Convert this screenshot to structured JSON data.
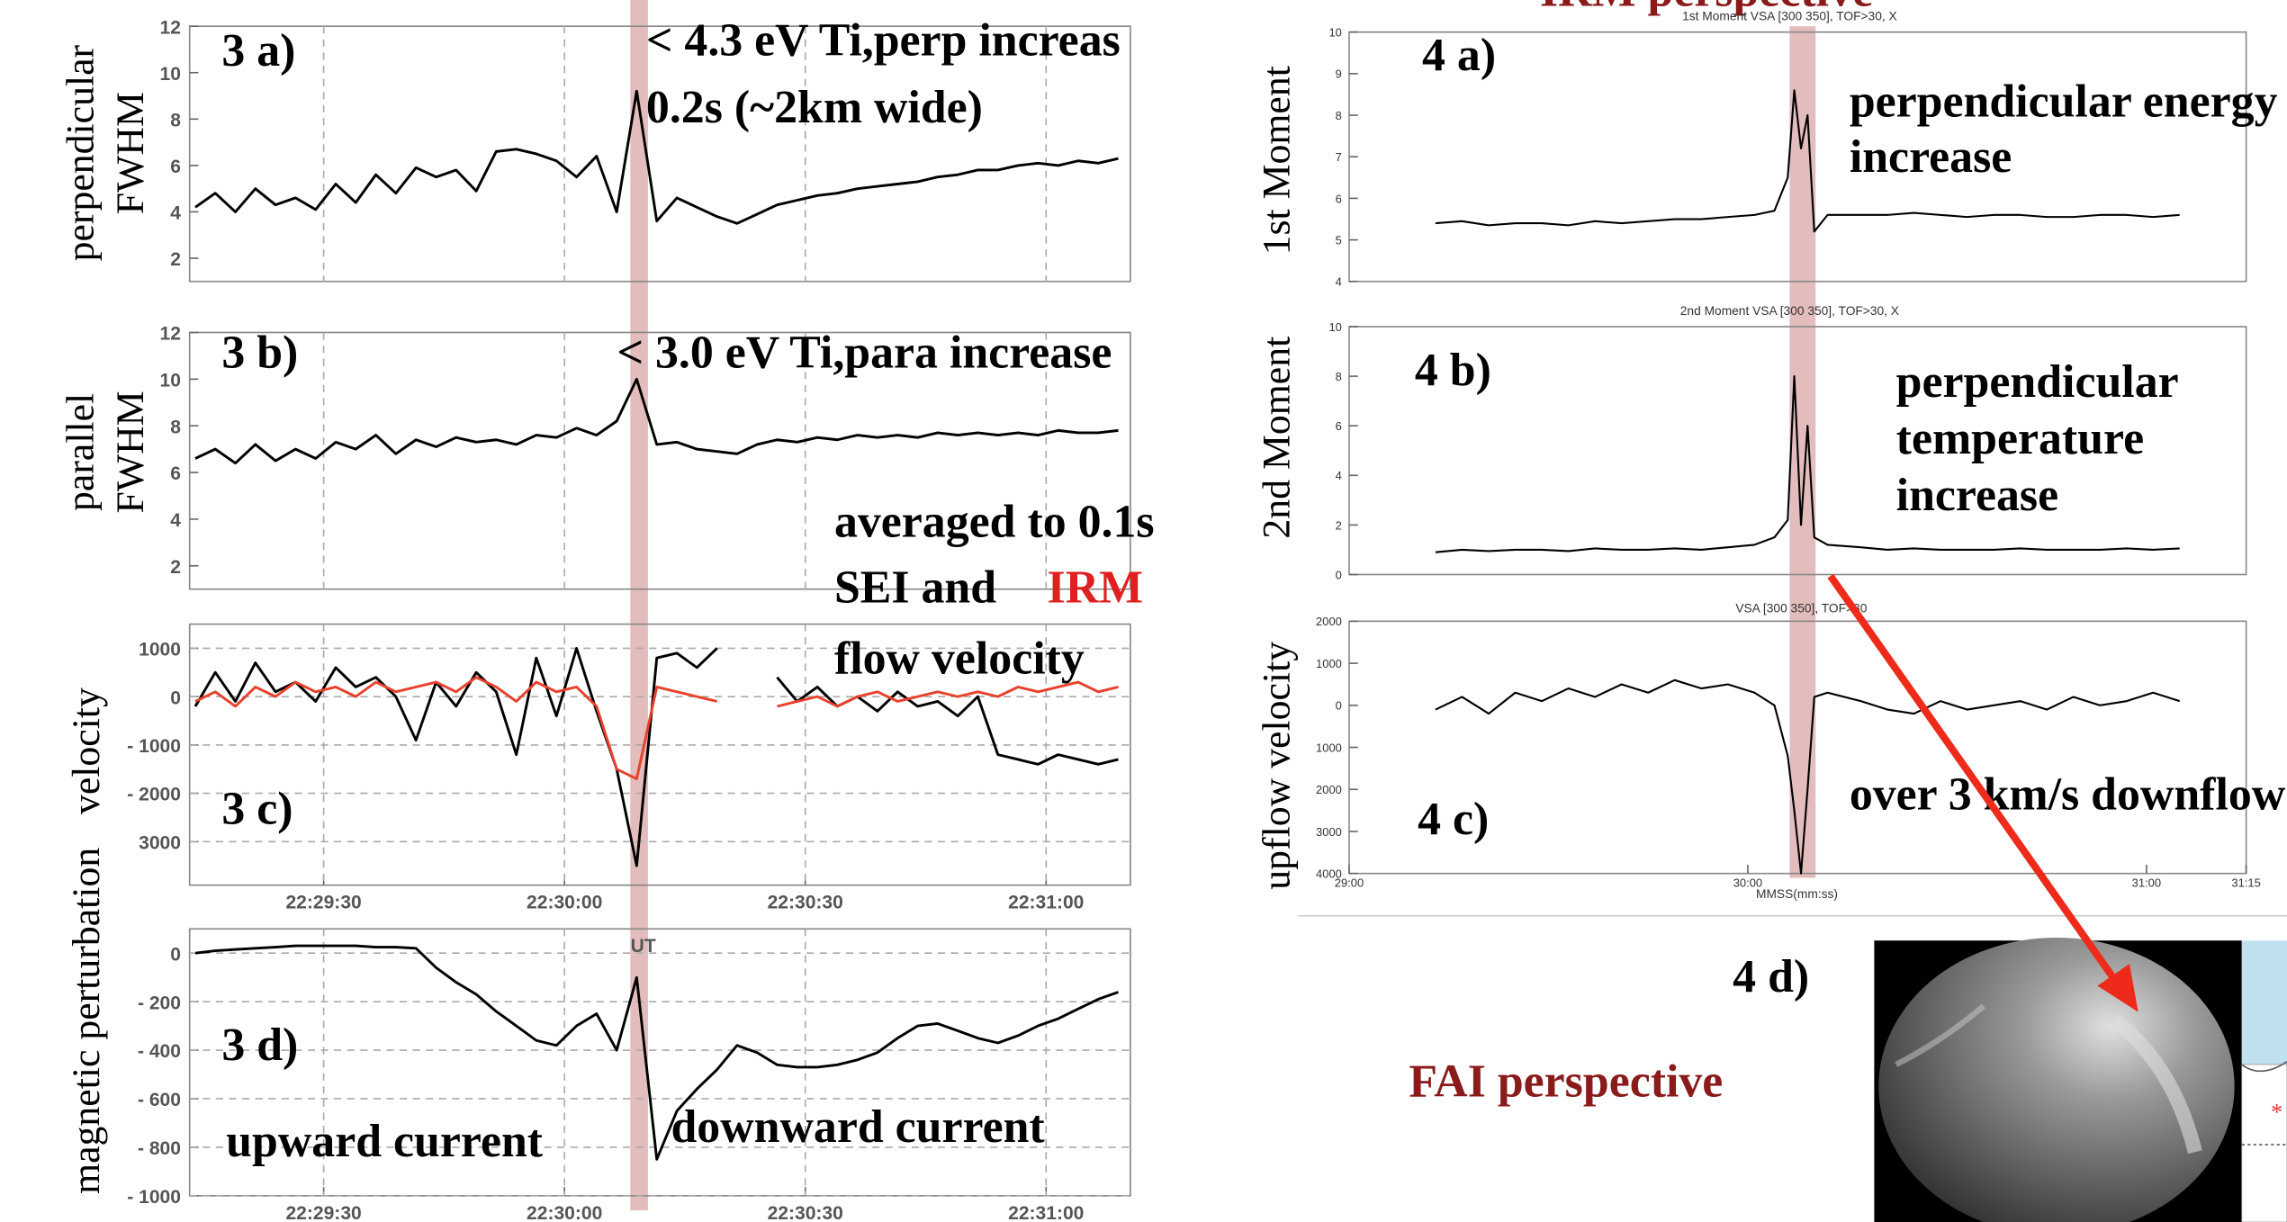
{
  "headings": {
    "irm": "IRM perspective",
    "fai": "FAI perspective",
    "panel_4d": "4 d)"
  },
  "note": [
    "averaged to 0.1s",
    "SEI and",
    "IRM",
    "flow velocity"
  ],
  "left_band": [
    68.2,
    70.4
  ],
  "right_band": [
    66.3,
    70.2
  ],
  "chart_data": [
    {
      "type": "line",
      "panel_label": "3 a)",
      "ylabel": [
        "perpendicular",
        "FWHM"
      ],
      "annotations": [
        "< 4.3 eV Ti,perp increas",
        "0.2s (~2km wide)"
      ],
      "x": [
        14,
        16.5,
        19,
        21.5,
        24,
        26.5,
        29,
        31.5,
        34,
        36.5,
        39,
        41.5,
        44,
        46.5,
        49,
        51.5,
        54,
        56.5,
        59,
        61.5,
        64,
        66.5,
        69,
        71.5,
        74,
        76.5,
        79,
        81.5,
        84,
        86.5,
        89,
        91.5,
        94,
        96.5,
        99,
        101.5,
        104,
        106.5,
        109,
        111.5,
        114,
        116.5,
        119,
        121.5,
        124,
        126.5,
        129
      ],
      "series": [
        {
          "color": "#000000",
          "values": [
            4.2,
            4.8,
            4.0,
            5.0,
            4.3,
            4.6,
            4.1,
            5.2,
            4.4,
            5.6,
            4.8,
            5.9,
            5.5,
            5.8,
            4.9,
            6.6,
            6.7,
            6.5,
            6.2,
            5.5,
            6.4,
            4.0,
            9.2,
            3.6,
            4.6,
            4.2,
            3.8,
            3.5,
            3.9,
            4.3,
            4.5,
            4.7,
            4.8,
            5.0,
            5.1,
            5.2,
            5.3,
            5.5,
            5.6,
            5.8,
            5.8,
            6.0,
            6.1,
            6.0,
            6.2,
            6.1,
            6.3
          ]
        }
      ],
      "xlim": [
        13.3,
        130.5
      ],
      "ylim": [
        1,
        12
      ],
      "yticks": [
        2,
        4,
        6,
        8,
        10,
        12
      ],
      "xgrid": [
        30,
        60,
        90,
        120
      ]
    },
    {
      "type": "line",
      "panel_label": "3 b)",
      "ylabel": [
        "parallel",
        "FWHM"
      ],
      "annotations": [
        "< 3.0 eV Ti,para increase"
      ],
      "x": [
        14,
        16.5,
        19,
        21.5,
        24,
        26.5,
        29,
        31.5,
        34,
        36.5,
        39,
        41.5,
        44,
        46.5,
        49,
        51.5,
        54,
        56.5,
        59,
        61.5,
        64,
        66.5,
        69,
        71.5,
        74,
        76.5,
        79,
        81.5,
        84,
        86.5,
        89,
        91.5,
        94,
        96.5,
        99,
        101.5,
        104,
        106.5,
        109,
        111.5,
        114,
        116.5,
        119,
        121.5,
        124,
        126.5,
        129
      ],
      "series": [
        {
          "color": "#000000",
          "values": [
            6.6,
            7.0,
            6.4,
            7.2,
            6.5,
            7.0,
            6.6,
            7.3,
            7.0,
            7.6,
            6.8,
            7.4,
            7.1,
            7.5,
            7.3,
            7.4,
            7.2,
            7.6,
            7.5,
            7.9,
            7.6,
            8.2,
            10.0,
            7.2,
            7.3,
            7.0,
            6.9,
            6.8,
            7.2,
            7.4,
            7.3,
            7.5,
            7.4,
            7.6,
            7.5,
            7.6,
            7.5,
            7.7,
            7.6,
            7.7,
            7.6,
            7.7,
            7.6,
            7.8,
            7.7,
            7.7,
            7.8
          ]
        }
      ],
      "xlim": [
        13.3,
        130.5
      ],
      "ylim": [
        1,
        12
      ],
      "yticks": [
        2,
        4,
        6,
        8,
        10,
        12
      ],
      "xgrid": [
        30,
        60,
        90,
        120
      ]
    },
    {
      "type": "line",
      "panel_label": "3 c)",
      "ylabel": "velocity",
      "xlabel": "UT",
      "x": [
        14,
        16.5,
        19,
        21.5,
        24,
        26.5,
        29,
        31.5,
        34,
        36.5,
        39,
        41.5,
        44,
        46.5,
        49,
        51.5,
        54,
        56.5,
        59,
        61.5,
        64,
        66.5,
        69,
        71.5,
        74,
        76.5,
        79,
        81.5,
        84,
        86.5,
        89,
        91.5,
        94,
        96.5,
        99,
        101.5,
        104,
        106.5,
        109,
        111.5,
        114,
        116.5,
        119,
        121.5,
        124,
        126.5,
        129
      ],
      "series": [
        {
          "color": "#000000",
          "values": [
            -200,
            500,
            -100,
            700,
            100,
            300,
            -100,
            600,
            200,
            400,
            0,
            -900,
            300,
            -200,
            500,
            100,
            -1200,
            800,
            -400,
            1000,
            -300,
            -1500,
            -3500,
            800,
            900,
            600,
            1000,
            null,
            null,
            400,
            -100,
            200,
            -200,
            0,
            -300,
            100,
            -200,
            -100,
            -400,
            0,
            -1200,
            -1300,
            -1400,
            -1200,
            -1300,
            -1400,
            -1300
          ]
        },
        {
          "color": "#e8412c",
          "values": [
            -100,
            100,
            -200,
            200,
            0,
            300,
            100,
            200,
            0,
            300,
            100,
            200,
            300,
            100,
            400,
            200,
            -100,
            300,
            100,
            200,
            -200,
            -1500,
            -1700,
            200,
            100,
            0,
            -100,
            null,
            null,
            -200,
            -100,
            0,
            -200,
            0,
            100,
            -100,
            0,
            100,
            0,
            100,
            0,
            200,
            100,
            200,
            300,
            100,
            200
          ]
        }
      ],
      "xlim": [
        13.3,
        130.5
      ],
      "ylim": [
        -3900,
        1500
      ],
      "yticks": [
        1000,
        0,
        {
          "value": -1000,
          "label": "- 1000"
        },
        {
          "value": -2000,
          "label": "- 2000"
        },
        {
          "value": -3000,
          "label": "3000"
        }
      ],
      "xticks": [
        {
          "value": 30,
          "label": "22:29:30"
        },
        {
          "value": 60,
          "label": "22:30:00"
        },
        {
          "value": 90,
          "label": "22:30:30"
        },
        {
          "value": 120,
          "label": "22:31:00"
        }
      ],
      "grid": true
    },
    {
      "type": "line",
      "panel_label": "3 d)",
      "ylabel": "magnetic perturbation",
      "annotations": [
        "upward current",
        "downward current"
      ],
      "x": [
        14,
        16.5,
        19,
        21.5,
        24,
        26.5,
        29,
        31.5,
        34,
        36.5,
        39,
        41.5,
        44,
        46.5,
        49,
        51.5,
        54,
        56.5,
        59,
        61.5,
        64,
        66.5,
        69,
        71.5,
        74,
        76.5,
        79,
        81.5,
        84,
        86.5,
        89,
        91.5,
        94,
        96.5,
        99,
        101.5,
        104,
        106.5,
        109,
        111.5,
        114,
        116.5,
        119,
        121.5,
        124,
        126.5,
        129
      ],
      "series": [
        {
          "color": "#000000",
          "values": [
            0,
            10,
            15,
            20,
            25,
            30,
            30,
            30,
            30,
            25,
            25,
            20,
            -60,
            -120,
            -170,
            -240,
            -300,
            -360,
            -380,
            -300,
            -250,
            -400,
            -100,
            -850,
            -650,
            -560,
            -480,
            -380,
            -410,
            -460,
            -470,
            -470,
            -460,
            -440,
            -410,
            -350,
            -300,
            -290,
            -320,
            -350,
            -370,
            -340,
            -300,
            -270,
            -230,
            -190,
            -160
          ]
        }
      ],
      "xlim": [
        13.3,
        130.5
      ],
      "ylim": [
        -1000,
        100
      ],
      "yticks": [
        0,
        {
          "value": -200,
          "label": "- 200"
        },
        {
          "value": -400,
          "label": "- 400"
        },
        {
          "value": -600,
          "label": "- 600"
        },
        {
          "value": -800,
          "label": "- 800"
        },
        {
          "value": -1000,
          "label": "- 1000"
        }
      ],
      "xticks": [
        {
          "value": 30,
          "label": "22:29:30"
        },
        {
          "value": 60,
          "label": "22:30:00"
        },
        {
          "value": 90,
          "label": "22:30:30"
        },
        {
          "value": 120,
          "label": "22:31:00"
        }
      ],
      "grid": true
    },
    {
      "type": "line",
      "title": "1st Moment VSA [300 350], TOF>30, X",
      "panel_label": "4 a)",
      "ylabel": "1st Moment",
      "annotations": [
        "perpendicular energy",
        "increase"
      ],
      "x": [
        13,
        17,
        21,
        25,
        29,
        33,
        37,
        41,
        45,
        49,
        53,
        57,
        61,
        64,
        66,
        67,
        68,
        69,
        70,
        72,
        77,
        81,
        85,
        89,
        93,
        97,
        101,
        105,
        109,
        113,
        117,
        121,
        125
      ],
      "series": [
        {
          "color": "#000000",
          "values": [
            5.4,
            5.45,
            5.35,
            5.4,
            5.4,
            5.35,
            5.45,
            5.4,
            5.45,
            5.5,
            5.5,
            5.55,
            5.6,
            5.7,
            6.5,
            8.6,
            7.2,
            8.0,
            5.2,
            5.6,
            5.6,
            5.6,
            5.65,
            5.6,
            5.55,
            5.6,
            5.6,
            5.55,
            5.55,
            5.6,
            5.6,
            5.55,
            5.6
          ]
        }
      ],
      "xlim": [
        0,
        135
      ],
      "ylim": [
        4,
        10
      ],
      "yticks": [
        4,
        5,
        6,
        7,
        8,
        9,
        10
      ]
    },
    {
      "type": "line",
      "title": "2nd Moment VSA [300 350], TOF>30, X",
      "panel_label": "4 b)",
      "ylabel": "2nd Moment",
      "annotations": [
        "perpendicular",
        "temperature",
        "increase"
      ],
      "x": [
        13,
        17,
        21,
        25,
        29,
        33,
        37,
        41,
        45,
        49,
        53,
        57,
        61,
        64,
        66,
        67,
        68,
        69,
        70,
        72,
        77,
        81,
        85,
        89,
        93,
        97,
        101,
        105,
        109,
        113,
        117,
        121,
        125
      ],
      "series": [
        {
          "color": "#000000",
          "values": [
            0.9,
            1.0,
            0.95,
            1.0,
            1.0,
            0.95,
            1.05,
            1.0,
            1.0,
            1.05,
            1.0,
            1.1,
            1.2,
            1.5,
            2.2,
            8.0,
            2.0,
            6.0,
            1.5,
            1.2,
            1.1,
            1.0,
            1.05,
            1.0,
            1.0,
            1.0,
            1.05,
            1.0,
            1.0,
            1.0,
            1.05,
            1.0,
            1.05
          ]
        }
      ],
      "xlim": [
        0,
        135
      ],
      "ylim": [
        0,
        10
      ],
      "yticks": [
        0,
        2,
        4,
        6,
        8,
        10
      ]
    },
    {
      "type": "line",
      "title": "VSA [300 350], TOF>30",
      "panel_label": "4 c)",
      "ylabel": "upflow velocity",
      "xlabel": "MMSS(mm:ss)",
      "annotations": [
        "over 3 km/s downflow"
      ],
      "x": [
        13,
        17,
        21,
        25,
        29,
        33,
        37,
        41,
        45,
        49,
        53,
        57,
        61,
        64,
        66,
        67,
        68,
        69,
        70,
        72,
        77,
        81,
        85,
        89,
        93,
        97,
        101,
        105,
        109,
        113,
        117,
        121,
        125
      ],
      "series": [
        {
          "color": "#000000",
          "values": [
            -100,
            200,
            -200,
            300,
            100,
            400,
            200,
            500,
            300,
            600,
            400,
            500,
            300,
            0,
            -1200,
            -2500,
            -4000,
            -2000,
            200,
            300,
            100,
            -100,
            -200,
            100,
            -100,
            0,
            100,
            -100,
            200,
            0,
            100,
            300,
            100
          ]
        }
      ],
      "xlim": [
        0,
        135
      ],
      "ylim": [
        -4000,
        2000
      ],
      "yticks": [
        2000,
        1000,
        0,
        {
          "value": -1000,
          "label": "1000"
        },
        {
          "value": -2000,
          "label": "2000"
        },
        {
          "value": -3000,
          "label": "3000"
        },
        {
          "value": -4000,
          "label": "4000"
        }
      ],
      "xticks": [
        {
          "value": 0,
          "label": "29:00"
        },
        {
          "value": 60,
          "label": "30:00"
        },
        {
          "value": 120,
          "label": "31:00"
        },
        {
          "value": 135,
          "label": "31:15"
        }
      ]
    }
  ]
}
